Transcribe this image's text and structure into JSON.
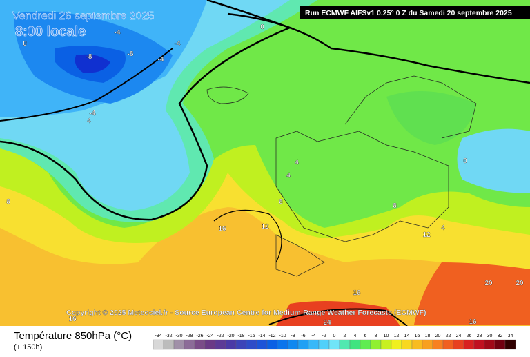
{
  "header": {
    "date": "Vendredi 26 septembre 2025",
    "time": "8:00 locale",
    "run": "Run ECMWF AIFSv1 0.25° 0 Z du Samedi 20 septembre 2025"
  },
  "contour_labels": [
    -4,
    -8,
    -8,
    -4,
    -4,
    -4,
    4,
    0,
    0,
    4,
    4,
    8,
    12,
    16,
    8,
    12,
    4,
    0,
    20,
    16,
    24,
    16,
    16,
    20,
    8
  ],
  "copyright": "Copyright © 2025 Meteociel.fr - Source European Centre for Medium-Range Weather Forecasts (ECMWF)",
  "footer": {
    "title": "Température 850hPa (°C)",
    "lead": "(+ 150h)"
  },
  "scale": {
    "labels": [
      -34,
      -32,
      -30,
      -28,
      -26,
      -24,
      -22,
      -20,
      -18,
      -16,
      -14,
      -12,
      -10,
      -8,
      -6,
      -4,
      -2,
      0,
      2,
      4,
      6,
      8,
      10,
      12,
      14,
      16,
      18,
      20,
      22,
      24,
      26,
      28,
      30,
      32,
      34
    ],
    "colors": [
      "#d8d8d8",
      "#bcbcbc",
      "#a090a8",
      "#8c6c98",
      "#7a4c88",
      "#6a3a86",
      "#5c3a96",
      "#4a3aa6",
      "#3c44b8",
      "#2e4cc8",
      "#1c54d8",
      "#0a60e4",
      "#0a74ec",
      "#1088f0",
      "#20a0f4",
      "#38b8f8",
      "#50d0fa",
      "#70e4f8",
      "#50e8b0",
      "#40e480",
      "#60ec50",
      "#90f030",
      "#c8f020",
      "#f0f020",
      "#f8d820",
      "#f8bc20",
      "#f8a020",
      "#f88020",
      "#f06020",
      "#e84020",
      "#d82020",
      "#c01020",
      "#a00818",
      "#700010",
      "#300000"
    ]
  }
}
